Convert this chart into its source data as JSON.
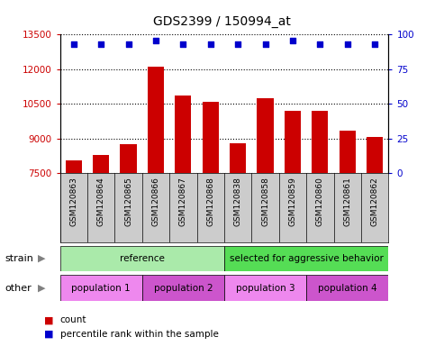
{
  "title": "GDS2399 / 150994_at",
  "samples": [
    "GSM120863",
    "GSM120864",
    "GSM120865",
    "GSM120866",
    "GSM120867",
    "GSM120868",
    "GSM120838",
    "GSM120858",
    "GSM120859",
    "GSM120860",
    "GSM120861",
    "GSM120862"
  ],
  "counts": [
    8050,
    8300,
    8750,
    12100,
    10850,
    10600,
    8800,
    10750,
    10200,
    10200,
    9350,
    9050
  ],
  "percentile_ranks": [
    93,
    93,
    93,
    96,
    93,
    93,
    93,
    93,
    96,
    93,
    93,
    93
  ],
  "ylim_left": [
    7500,
    13500
  ],
  "ylim_right": [
    0,
    100
  ],
  "yticks_left": [
    7500,
    9000,
    10500,
    12000,
    13500
  ],
  "yticks_right": [
    0,
    25,
    50,
    75,
    100
  ],
  "bar_color": "#cc0000",
  "dot_color": "#0000cc",
  "bar_width": 0.6,
  "strain_groups": [
    {
      "label": "reference",
      "start": 0,
      "end": 6,
      "color": "#aaeaaa"
    },
    {
      "label": "selected for aggressive behavior",
      "start": 6,
      "end": 12,
      "color": "#55dd55"
    }
  ],
  "other_groups": [
    {
      "label": "population 1",
      "start": 0,
      "end": 3,
      "color": "#ee88ee"
    },
    {
      "label": "population 2",
      "start": 3,
      "end": 6,
      "color": "#cc55cc"
    },
    {
      "label": "population 3",
      "start": 6,
      "end": 9,
      "color": "#ee88ee"
    },
    {
      "label": "population 4",
      "start": 9,
      "end": 12,
      "color": "#cc55cc"
    }
  ],
  "strain_label": "strain",
  "other_label": "other",
  "legend_count_label": "count",
  "legend_pct_label": "percentile rank within the sample",
  "background_color": "#ffffff",
  "tick_label_color_left": "#cc0000",
  "tick_label_color_right": "#0000cc",
  "xlabel_bg_color": "#cccccc",
  "plot_bg_color": "#ffffff"
}
